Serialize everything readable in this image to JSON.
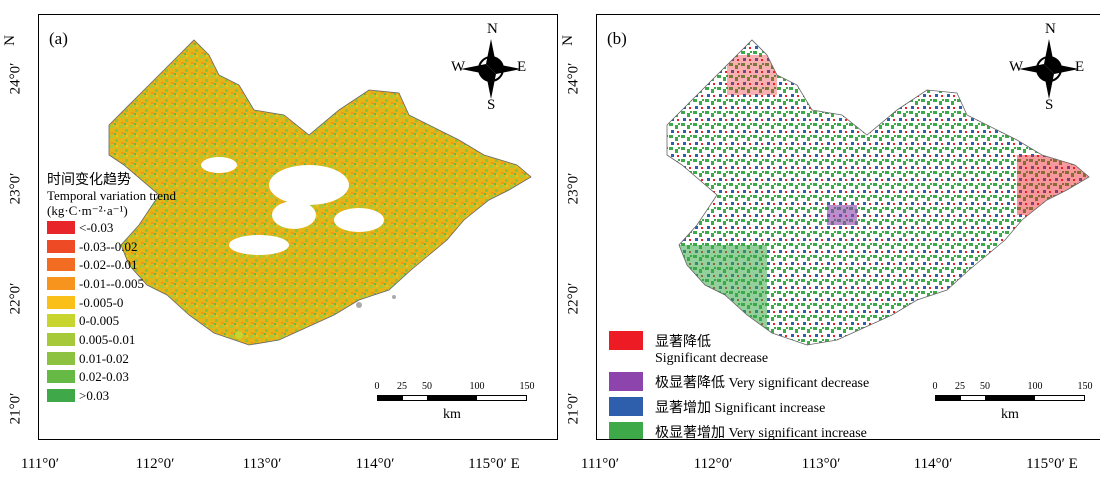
{
  "axes": {
    "x_ticks": [
      "111°0′",
      "112°0′",
      "113°0′",
      "114°0′",
      "115°0′ E"
    ],
    "y_ticks": [
      "21°0′",
      "22°0′",
      "23°0′",
      "24°0′",
      "N"
    ]
  },
  "panel_a": {
    "label": "(a)",
    "legend_title_zh": "时间变化趋势",
    "legend_title_en": "Temporal variation trend",
    "legend_unit": "(kg·C·m⁻²·a⁻¹)",
    "classes": [
      {
        "label": "<-0.03",
        "color": "#e8262a"
      },
      {
        "label": "-0.03--0.02",
        "color": "#ee4a25"
      },
      {
        "label": "-0.02--0.01",
        "color": "#f26c22"
      },
      {
        "label": "-0.01--0.005",
        "color": "#f7941d"
      },
      {
        "label": "-0.005-0",
        "color": "#fbbf1a"
      },
      {
        "label": "0-0.005",
        "color": "#c9d52f"
      },
      {
        "label": "0.005-0.01",
        "color": "#a6c93a"
      },
      {
        "label": "0.01-0.02",
        "color": "#8cc23f"
      },
      {
        "label": "0.02-0.03",
        "color": "#67b946"
      },
      {
        "label": ">0.03",
        "color": "#3fa949"
      }
    ]
  },
  "panel_b": {
    "label": "(b)",
    "classes": [
      {
        "zh": "显著降低",
        "en": "Significant decrease",
        "color": "#ed1c24"
      },
      {
        "zh": "极显著降低",
        "en": "Very significant decrease",
        "color": "#8e44ad"
      },
      {
        "zh": "显著增加",
        "en": "Significant increase",
        "color": "#2e5fac"
      },
      {
        "zh": "极显著增加",
        "en": "Very significant increase",
        "color": "#3da948"
      }
    ]
  },
  "compass": {
    "n": "N",
    "s": "S",
    "e": "E",
    "w": "W"
  },
  "scalebar": {
    "ticks": [
      "0",
      "25",
      "50",
      "100",
      "150"
    ],
    "unit": "km"
  }
}
